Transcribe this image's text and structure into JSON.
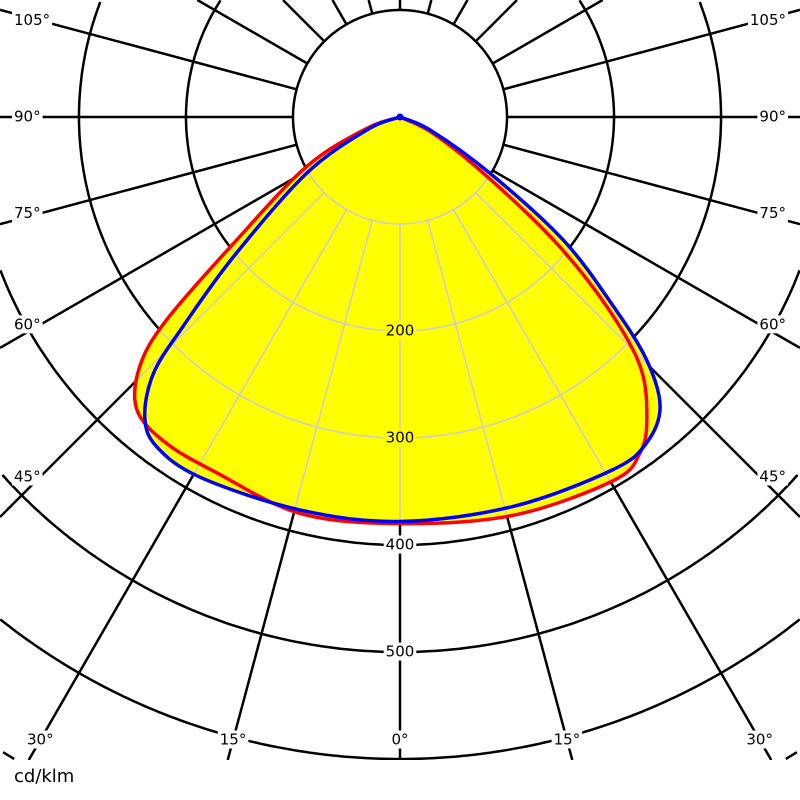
{
  "chart_data": {
    "type": "polar",
    "unit_label": "cd/klm",
    "radial_ticks": [
      100,
      200,
      300,
      400,
      500,
      600,
      700
    ],
    "radial_tick_labels": [
      "200",
      "300",
      "400",
      "500"
    ],
    "angle_ticks_left": [
      "105°",
      "90°",
      "75°",
      "60°",
      "45°"
    ],
    "angle_ticks_right": [
      "105°",
      "90°",
      "75°",
      "60°",
      "45°"
    ],
    "angle_ticks_bottom": [
      "30°",
      "15°",
      "0°",
      "15°",
      "30°"
    ],
    "angle_step_deg": 15,
    "fill_color": "#ffff00",
    "grid_color_outside": "#000000",
    "grid_color_inside": "#cccccc",
    "series": [
      {
        "color": "#ff0000",
        "points": [
          [
            -90,
            0
          ],
          [
            -71,
            33
          ],
          [
            -62,
            99
          ],
          [
            -52.8,
            195
          ],
          [
            -49,
            289
          ],
          [
            -46.2,
            337
          ],
          [
            -41.9,
            368
          ],
          [
            -35.6,
            375
          ],
          [
            -27.2,
            374
          ],
          [
            -14.2,
            382
          ],
          [
            0,
            380
          ],
          [
            15.9,
            387
          ],
          [
            30.4,
            394
          ],
          [
            35.5,
            386
          ],
          [
            39.2,
            365
          ],
          [
            43.9,
            324
          ],
          [
            47.5,
            262
          ],
          [
            51.3,
            184
          ],
          [
            56,
            94
          ],
          [
            64,
            33
          ],
          [
            90,
            0
          ]
        ]
      },
      {
        "color": "#0000ff",
        "points": [
          [
            -90,
            0
          ],
          [
            -68.7,
            33
          ],
          [
            -58.9,
            102
          ],
          [
            -50,
            203
          ],
          [
            -46,
            282
          ],
          [
            -43.9,
            332
          ],
          [
            -40.4,
            368
          ],
          [
            -36.4,
            383
          ],
          [
            -29,
            385
          ],
          [
            -14.3,
            379
          ],
          [
            0,
            378
          ],
          [
            16.2,
            379
          ],
          [
            31.1,
            385
          ],
          [
            37.1,
            382
          ],
          [
            41.9,
            364
          ],
          [
            45.4,
            324
          ],
          [
            48.4,
            267
          ],
          [
            53,
            191
          ],
          [
            58,
            99
          ],
          [
            66.6,
            31
          ],
          [
            90,
            0
          ]
        ]
      }
    ]
  }
}
